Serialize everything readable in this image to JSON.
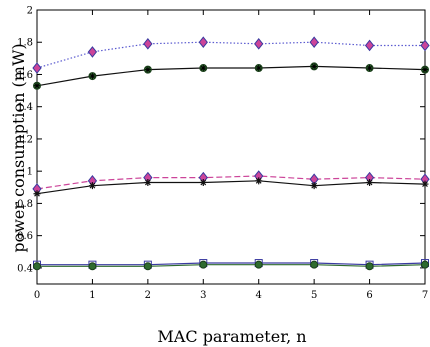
{
  "chart_data": {
    "type": "line",
    "xlabel": "MAC parameter, n",
    "ylabel": "power consumption (mW)",
    "xlim": [
      0,
      7
    ],
    "ylim": [
      0.3,
      2.0
    ],
    "x": [
      0,
      1,
      2,
      3,
      4,
      5,
      6,
      7
    ],
    "xticks": [
      "0",
      "1",
      "2",
      "3",
      "4",
      "5",
      "6",
      "7"
    ],
    "yticks": [
      "0.4",
      "0.6",
      "0.8",
      "1",
      "1.2",
      "1.4",
      "1.6",
      "1.8",
      "2"
    ],
    "grid": false,
    "series": [
      {
        "values": [
          1.64,
          1.74,
          1.79,
          1.8,
          1.79,
          1.8,
          1.78,
          1.78
        ],
        "color": "#5b5bd0",
        "marker": "diamond",
        "dash": "dotted",
        "fill": "#cc4499"
      },
      {
        "values": [
          1.53,
          1.59,
          1.63,
          1.64,
          1.64,
          1.65,
          1.64,
          1.63
        ],
        "color": "#111111",
        "marker": "circle-star",
        "dash": "solid",
        "fill": "#2e6b2e"
      },
      {
        "values": [
          0.89,
          0.94,
          0.96,
          0.96,
          0.97,
          0.95,
          0.96,
          0.95
        ],
        "color": "#cc4499",
        "marker": "diamond",
        "dash": "dashed",
        "fill": "#cc4499"
      },
      {
        "values": [
          0.86,
          0.91,
          0.93,
          0.93,
          0.94,
          0.91,
          0.93,
          0.92
        ],
        "color": "#111111",
        "marker": "star",
        "dash": "solid",
        "fill": "#111111"
      },
      {
        "values": [
          0.42,
          0.42,
          0.42,
          0.43,
          0.43,
          0.43,
          0.42,
          0.43
        ],
        "color": "#3a3aa0",
        "marker": "square",
        "dash": "solid",
        "fill": "#2e6b2e"
      },
      {
        "values": [
          0.41,
          0.41,
          0.41,
          0.42,
          0.42,
          0.42,
          0.41,
          0.42
        ],
        "color": "#2e6b2e",
        "marker": "circle",
        "dash": "solid",
        "fill": "#2e6b2e"
      }
    ]
  }
}
